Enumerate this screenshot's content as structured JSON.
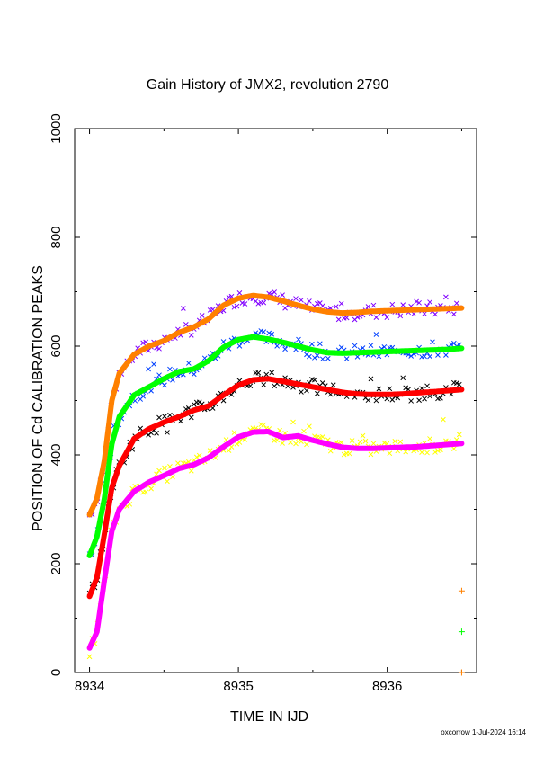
{
  "chart_data": {
    "type": "scatter",
    "title": "Gain History of JMX2, revolution 2790",
    "xlabel": "TIME IN IJD",
    "ylabel": "POSITION OF Cd CALIBRATION PEAKS",
    "xlim": [
      8933.9,
      8936.6
    ],
    "ylim": [
      0,
      1000
    ],
    "x_ticks": [
      "8934",
      "8935",
      "8936"
    ],
    "y_ticks": [
      "0",
      "200",
      "400",
      "600",
      "800",
      "1000"
    ],
    "footer": "oxcorrow  1-Jul-2024 16:14",
    "series": [
      {
        "color": "#ff8000",
        "scatter_color": "#8000ff",
        "x": [
          8934.0,
          8934.05,
          8934.1,
          8934.15,
          8934.2,
          8934.3,
          8934.4,
          8934.5,
          8934.6,
          8934.7,
          8934.8,
          8934.9,
          8935.0,
          8935.1,
          8935.2,
          8935.3,
          8935.4,
          8935.5,
          8935.6,
          8935.7,
          8935.8,
          8935.9,
          8936.0,
          8936.1,
          8936.2,
          8936.3,
          8936.4,
          8936.5
        ],
        "y": [
          290,
          320,
          390,
          500,
          550,
          585,
          600,
          610,
          625,
          635,
          650,
          675,
          688,
          693,
          690,
          683,
          675,
          668,
          663,
          661,
          662,
          664,
          665,
          666,
          667,
          668,
          669,
          670
        ]
      },
      {
        "color": "#00ff00",
        "scatter_color": "#0040ff",
        "x": [
          8934.0,
          8934.05,
          8934.1,
          8934.15,
          8934.2,
          8934.3,
          8934.4,
          8934.5,
          8934.6,
          8934.7,
          8934.8,
          8934.9,
          8935.0,
          8935.1,
          8935.2,
          8935.3,
          8935.4,
          8935.5,
          8935.6,
          8935.7,
          8935.8,
          8935.9,
          8936.0,
          8936.1,
          8936.2,
          8936.3,
          8936.4,
          8936.5
        ],
        "y": [
          215,
          250,
          320,
          420,
          470,
          510,
          525,
          540,
          553,
          558,
          573,
          598,
          612,
          617,
          613,
          607,
          600,
          593,
          588,
          587,
          588,
          589,
          590,
          591,
          592,
          593,
          594,
          596
        ]
      },
      {
        "color": "#ff0000",
        "scatter_color": "#000000",
        "x": [
          8934.0,
          8934.05,
          8934.1,
          8934.15,
          8934.2,
          8934.3,
          8934.4,
          8934.5,
          8934.6,
          8934.7,
          8934.8,
          8934.9,
          8935.0,
          8935.1,
          8935.2,
          8935.3,
          8935.4,
          8935.5,
          8935.6,
          8935.7,
          8935.8,
          8935.9,
          8936.0,
          8936.1,
          8936.2,
          8936.3,
          8936.4,
          8936.5
        ],
        "y": [
          140,
          175,
          255,
          340,
          380,
          430,
          448,
          460,
          470,
          482,
          490,
          510,
          528,
          538,
          540,
          535,
          530,
          525,
          520,
          515,
          512,
          511,
          511,
          512,
          514,
          516,
          518,
          520
        ]
      },
      {
        "color": "#ff00ff",
        "scatter_color": "#ffff00",
        "x": [
          8934.0,
          8934.05,
          8934.1,
          8934.15,
          8934.2,
          8934.3,
          8934.4,
          8934.5,
          8934.6,
          8934.7,
          8934.8,
          8934.9,
          8935.0,
          8935.1,
          8935.2,
          8935.3,
          8935.4,
          8935.5,
          8935.6,
          8935.7,
          8935.8,
          8935.9,
          8936.0,
          8936.1,
          8936.2,
          8936.3,
          8936.4,
          8936.5
        ],
        "y": [
          45,
          75,
          170,
          260,
          300,
          333,
          350,
          362,
          375,
          382,
          395,
          415,
          433,
          442,
          443,
          432,
          435,
          427,
          420,
          414,
          412,
          412,
          413,
          414,
          415,
          417,
          419,
          421
        ]
      }
    ],
    "markers": [
      {
        "x": 8936.5,
        "y": 150,
        "color": "#ff8000"
      },
      {
        "x": 8936.5,
        "y": 75,
        "color": "#00ff00"
      },
      {
        "x": 8936.5,
        "y": 0,
        "color": "#ff8000"
      }
    ]
  }
}
